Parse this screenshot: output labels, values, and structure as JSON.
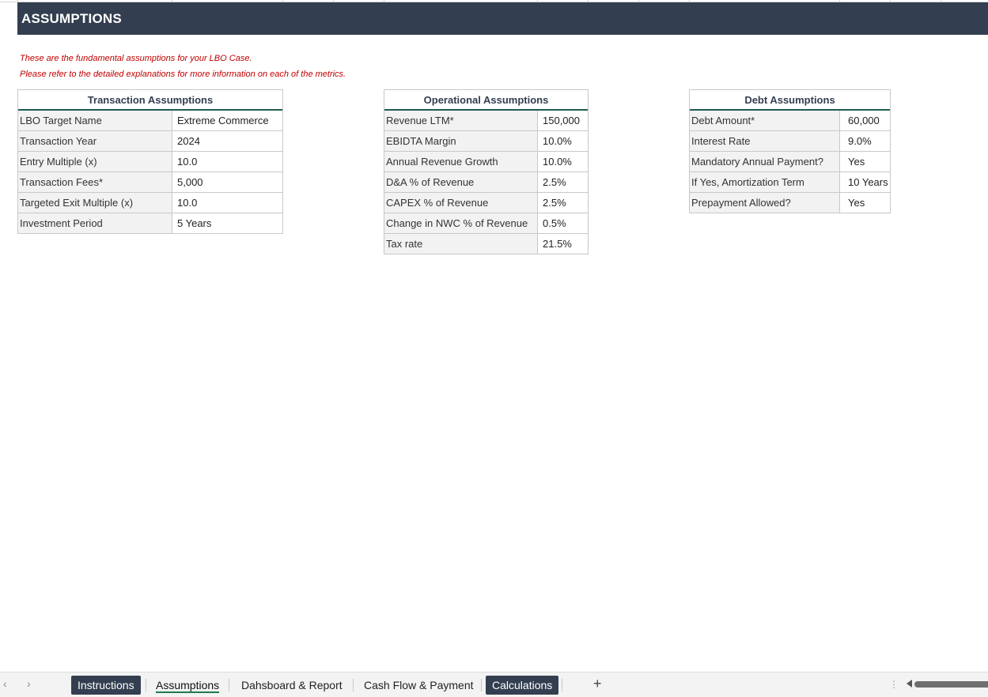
{
  "banner": {
    "title": "ASSUMPTIONS"
  },
  "notes": [
    "These are the fundamental assumptions for your LBO Case.",
    "Please refer to the detailed explanations for more information on each of the metrics."
  ],
  "transaction": {
    "title": "Transaction Assumptions",
    "rows": [
      {
        "label": "LBO Target Name",
        "value": "Extreme Commerce"
      },
      {
        "label": "Transaction Year",
        "value": "2024"
      },
      {
        "label": "Entry Multiple (x)",
        "value": "10.0"
      },
      {
        "label": "Transaction Fees*",
        "value": "5,000"
      },
      {
        "label": "Targeted Exit Multiple (x)",
        "value": "10.0"
      },
      {
        "label": "Investment Period",
        "value": "5 Years"
      }
    ]
  },
  "operational": {
    "title": "Operational Assumptions",
    "rows": [
      {
        "label": "Revenue LTM*",
        "value": "150,000"
      },
      {
        "label": "EBIDTA Margin",
        "value": "10.0%"
      },
      {
        "label": "Annual Revenue Growth",
        "value": "10.0%"
      },
      {
        "label": "D&A % of Revenue",
        "value": "2.5%"
      },
      {
        "label": "CAPEX % of Revenue",
        "value": "2.5%"
      },
      {
        "label": "Change in NWC % of Revenue",
        "value": "0.5%"
      },
      {
        "label": "Tax rate",
        "value": "21.5%"
      }
    ]
  },
  "debt": {
    "title": "Debt Assumptions",
    "rows": [
      {
        "label": "Debt Amount*",
        "value": "60,000"
      },
      {
        "label": "Interest Rate",
        "value": "9.0%"
      },
      {
        "label": "Mandatory Annual Payment?",
        "value": "Yes"
      },
      {
        "label": "If Yes, Amortization Term",
        "value": "10 Years"
      },
      {
        "label": "Prepayment Allowed?",
        "value": "Yes"
      }
    ]
  },
  "sheet_tabs": {
    "prev_icon": "chevron-left-icon",
    "next_icon": "chevron-right-icon",
    "tabs": [
      "Instructions",
      "Assumptions",
      "Dahsboard & Report",
      "Cash Flow & Payment",
      "Calculations"
    ],
    "active": "Assumptions",
    "add_label": "+"
  },
  "colors": {
    "banner": "#333f50",
    "note_text": "#c00000",
    "header_underline": "#1f5c4f",
    "label_fill": "#f2f2f2"
  }
}
